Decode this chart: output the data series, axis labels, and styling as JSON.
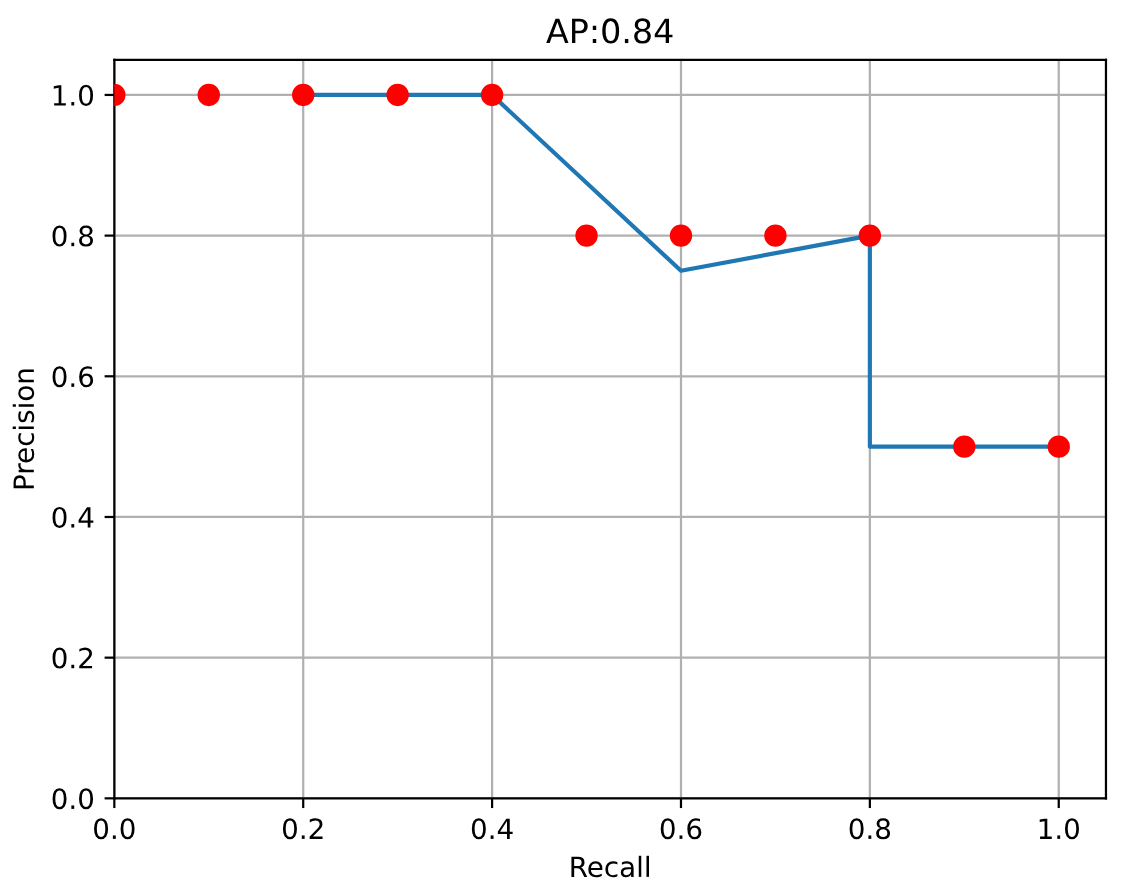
{
  "chart_data": {
    "type": "line",
    "title": "AP:0.84",
    "xlabel": "Recall",
    "ylabel": "Precision",
    "series": [
      {
        "color": "#1f77b4",
        "x": [
          0.2,
          0.4,
          0.6,
          0.8,
          0.8,
          1.0
        ],
        "values": [
          1.0,
          1.0,
          0.75,
          0.8,
          0.5,
          0.5
        ]
      },
      {
        "type": "scatter",
        "color": "#ff0000",
        "x": [
          0.0,
          0.1,
          0.2,
          0.3,
          0.4,
          0.5,
          0.6,
          0.7,
          0.8,
          0.9,
          1.0
        ],
        "values": [
          1.0,
          1.0,
          1.0,
          1.0,
          1.0,
          0.8,
          0.8,
          0.8,
          0.8,
          0.5,
          0.5
        ]
      }
    ],
    "xlim": [
      0,
      1.05
    ],
    "ylim": [
      0,
      1.05
    ],
    "xticks": [
      {
        "value": 0,
        "label": "0.0"
      },
      {
        "value": 0.2,
        "label": "0.2"
      },
      {
        "value": 0.4,
        "label": "0.4"
      },
      {
        "value": 0.6,
        "label": "0.6"
      },
      {
        "value": 0.8,
        "label": "0.8"
      },
      {
        "value": 1.0,
        "label": "1.0"
      }
    ],
    "yticks": [
      {
        "value": 0,
        "label": "0.0"
      },
      {
        "value": 0.2,
        "label": "0.2"
      },
      {
        "value": 0.4,
        "label": "0.4"
      },
      {
        "value": 0.6,
        "label": "0.6"
      },
      {
        "value": 0.8,
        "label": "0.8"
      },
      {
        "value": 1.0,
        "label": "1.0"
      }
    ],
    "grid": true
  }
}
